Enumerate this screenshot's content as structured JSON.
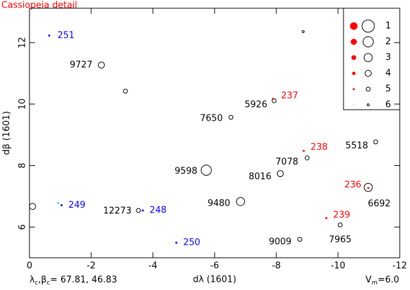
{
  "chart_data": {
    "type": "scatter",
    "title": "Cassiopeia detail",
    "xlabel": "dλ (1601)",
    "ylabel": "dβ (1601)",
    "footer_left": [
      "λ",
      "c",
      ",β",
      "c",
      "= 67.81, 46.83"
    ],
    "footer_right": [
      "V",
      "m",
      "=6.0"
    ],
    "xlim": [
      0,
      -12
    ],
    "ylim": [
      5,
      13.12
    ],
    "xticks": [
      0,
      -2,
      -4,
      -6,
      -8,
      -10,
      -12
    ],
    "yticks": [
      6,
      8,
      10,
      12
    ],
    "legend": {
      "labels": [
        1,
        2,
        3,
        4,
        5,
        6
      ],
      "colors": [
        "#ff0000",
        "#000000"
      ]
    },
    "series": [
      {
        "color": "#000000",
        "marker": "open-circle",
        "x": [
          -8.87,
          -2.33,
          -3.11,
          -7.93,
          -6.53,
          -11.22,
          -9.0,
          -8.13,
          -5.73,
          -10.98,
          -6.84,
          -0.1,
          -3.53,
          -10.07,
          -8.76
        ],
        "values": [
          12.36,
          11.27,
          10.42,
          10.11,
          9.57,
          8.77,
          8.25,
          7.74,
          7.85,
          7.29,
          6.83,
          6.67,
          6.54,
          6.07,
          5.6
        ],
        "sizes": [
          6,
          4,
          5,
          5,
          5,
          5,
          5,
          4,
          2,
          3,
          3,
          4,
          5,
          5,
          5
        ],
        "labels": [
          null,
          "9727",
          null,
          "5926",
          "7650",
          "5518",
          "7078",
          "8016",
          "9598",
          "6692",
          "9480",
          null,
          "12273",
          "7965",
          "9009"
        ]
      },
      {
        "color": "#ff0000",
        "marker": "dot",
        "x": [
          -7.89,
          -8.89,
          -10.98,
          -9.62
        ],
        "values": [
          10.17,
          8.48,
          7.27,
          6.29
        ],
        "sizes": [
          5,
          5,
          5,
          5
        ],
        "labels": [
          "237",
          "238",
          "236",
          "239"
        ]
      },
      {
        "color": "#0000ff",
        "marker": "dot",
        "x": [
          -0.64,
          -1.04,
          -3.67,
          -4.76
        ],
        "values": [
          12.23,
          6.71,
          6.54,
          5.49
        ],
        "sizes": [
          5,
          5,
          5,
          5
        ],
        "labels": [
          "251",
          "249",
          "248",
          "250"
        ]
      },
      {
        "color": "#33ccff",
        "marker": "dot",
        "x": [
          -0.93
        ],
        "values": [
          6.78
        ],
        "sizes": [
          5
        ]
      }
    ]
  }
}
